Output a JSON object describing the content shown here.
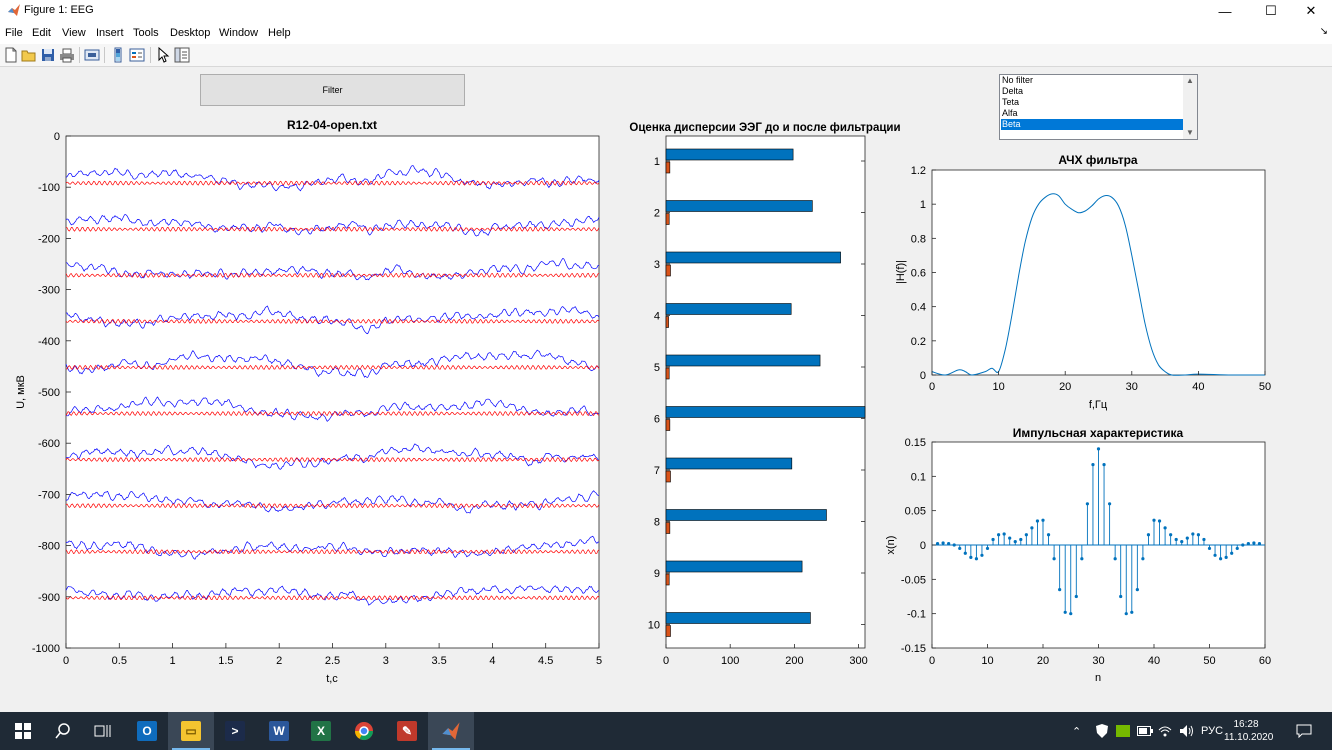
{
  "window": {
    "title": "Figure 1: EEG",
    "minimize": "—",
    "maximize": "☐",
    "close": "✕"
  },
  "menu": [
    "File",
    "Edit",
    "View",
    "Insert",
    "Tools",
    "Desktop",
    "Window",
    "Help"
  ],
  "dock_arrow": "↘",
  "toolbar_icons": [
    "new-figure-icon",
    "open-file-icon",
    "save-icon",
    "print-icon",
    "link-plot-icon",
    "insert-colorbar-icon",
    "insert-legend-icon",
    "pointer-icon",
    "property-inspector-icon"
  ],
  "filter_button": {
    "label": "Filter"
  },
  "filter_list": {
    "items": [
      "No filter",
      "Delta",
      "Teta",
      "Alfa",
      "Beta"
    ],
    "selected": 4
  },
  "colors": {
    "raw_signal": "#0000ff",
    "filtered_signal": "#ff0000",
    "bar_before": "#0072bd",
    "bar_after": "#d95319",
    "stem": "#0072bd",
    "taskbar": "#1f2a36"
  },
  "chart_data": [
    {
      "type": "line",
      "title": "R12-04-open.txt",
      "xlabel": "t,c",
      "ylabel": "U, мкВ",
      "xlim": [
        0,
        5
      ],
      "ylim": [
        -1000,
        0
      ],
      "xticks": [
        "0",
        "0.5",
        "1",
        "1.5",
        "2",
        "2.5",
        "3",
        "3.5",
        "4",
        "4.5",
        "5"
      ],
      "yticks": [
        "0",
        "-100",
        "-200",
        "-300",
        "-400",
        "-500",
        "-600",
        "-700",
        "-800",
        "-900",
        "-1000"
      ],
      "channel_offsets": [
        -90,
        -180,
        -270,
        -360,
        -450,
        -540,
        -630,
        -720,
        -810,
        -900
      ],
      "series": [
        {
          "name": "",
          "style": "raw EEG (blue)"
        },
        {
          "name": "",
          "style": "filtered EEG (red)"
        }
      ],
      "grid": false
    },
    {
      "type": "bar",
      "orientation": "horizontal",
      "title": "Оценка дисперсии ЭЭГ до и после фильтрации",
      "categories": [
        "1",
        "2",
        "3",
        "4",
        "5",
        "6",
        "7",
        "8",
        "9",
        "10"
      ],
      "xticks": [
        "0",
        "100",
        "200",
        "300"
      ],
      "xlim": [
        0,
        310
      ],
      "series": [
        {
          "name": "",
          "values": [
            198,
            228,
            272,
            195,
            240,
            310,
            196,
            250,
            212,
            225
          ]
        },
        {
          "name": "",
          "values": [
            6,
            5,
            7,
            4,
            5,
            6,
            7,
            6,
            5,
            7
          ]
        }
      ]
    },
    {
      "type": "line",
      "title": "АЧХ фильтра",
      "xlabel": "f,Гц",
      "ylabel": "|H(f)|",
      "xlim": [
        0,
        50
      ],
      "ylim": [
        0,
        1.2
      ],
      "xticks": [
        "0",
        "10",
        "20",
        "30",
        "40",
        "50"
      ],
      "yticks": [
        "0",
        "0.2",
        "0.4",
        "0.6",
        "0.8",
        "1",
        "1.2"
      ],
      "x": [
        0,
        2,
        4,
        5,
        6,
        8,
        9,
        10,
        11,
        12,
        13,
        14,
        15,
        16,
        17,
        18,
        19,
        20,
        21,
        22,
        23,
        24,
        25,
        26,
        27,
        28,
        29,
        30,
        31,
        32,
        33,
        34,
        35,
        36,
        38,
        40,
        45,
        50
      ],
      "y": [
        0.02,
        0.0,
        0.03,
        0.02,
        0.0,
        0.02,
        0.04,
        0.02,
        0.15,
        0.35,
        0.58,
        0.78,
        0.92,
        1.0,
        1.04,
        1.06,
        1.05,
        1.0,
        0.97,
        0.95,
        0.96,
        0.99,
        1.03,
        1.05,
        1.04,
        0.99,
        0.88,
        0.7,
        0.5,
        0.3,
        0.15,
        0.06,
        0.02,
        0.0,
        0.0,
        0.005,
        0.0,
        0.0
      ]
    },
    {
      "type": "stem",
      "title": "Импульсная характеристика",
      "xlabel": "n",
      "ylabel": "x(n)",
      "xlim": [
        0,
        60
      ],
      "ylim": [
        -0.15,
        0.15
      ],
      "xticks": [
        "0",
        "10",
        "20",
        "30",
        "40",
        "50",
        "60"
      ],
      "yticks": [
        "0.15",
        "0.1",
        "0.05",
        "0",
        "-0.05",
        "-0.1",
        "-0.15"
      ],
      "x": [
        1,
        2,
        3,
        4,
        5,
        6,
        7,
        8,
        9,
        10,
        11,
        12,
        13,
        14,
        15,
        16,
        17,
        18,
        19,
        20,
        21,
        22,
        23,
        24,
        25,
        26,
        27,
        28,
        29,
        30,
        31,
        32,
        33,
        34,
        35,
        36,
        37,
        38,
        39,
        40,
        41,
        42,
        43,
        44,
        45,
        46,
        47,
        48,
        49,
        50,
        51,
        52,
        53,
        54,
        55,
        56,
        57,
        58,
        59
      ],
      "y": [
        0.002,
        0.003,
        0.002,
        0.0,
        -0.005,
        -0.012,
        -0.018,
        -0.02,
        -0.015,
        -0.005,
        0.008,
        0.015,
        0.016,
        0.01,
        0.005,
        0.008,
        0.015,
        0.025,
        0.035,
        0.036,
        0.015,
        -0.02,
        -0.065,
        -0.098,
        -0.1,
        -0.075,
        -0.02,
        0.06,
        0.117,
        0.14,
        0.117,
        0.06,
        -0.02,
        -0.075,
        -0.1,
        -0.098,
        -0.065,
        -0.02,
        0.015,
        0.036,
        0.035,
        0.025,
        0.015,
        0.008,
        0.005,
        0.01,
        0.016,
        0.015,
        0.008,
        -0.005,
        -0.015,
        -0.02,
        -0.018,
        -0.012,
        -0.005,
        0.0,
        0.002,
        0.003,
        0.002
      ]
    }
  ],
  "taskbar": {
    "items": [
      "windows-start-icon",
      "search-icon",
      "task-view-icon",
      "outlook-icon",
      "file-explorer-icon",
      "powershell-icon",
      "word-icon",
      "excel-icon",
      "chrome-icon",
      "app-icon",
      "matlab-icon"
    ],
    "tray_lang": "РУС",
    "time": "16:28",
    "date": "11.10.2020"
  }
}
